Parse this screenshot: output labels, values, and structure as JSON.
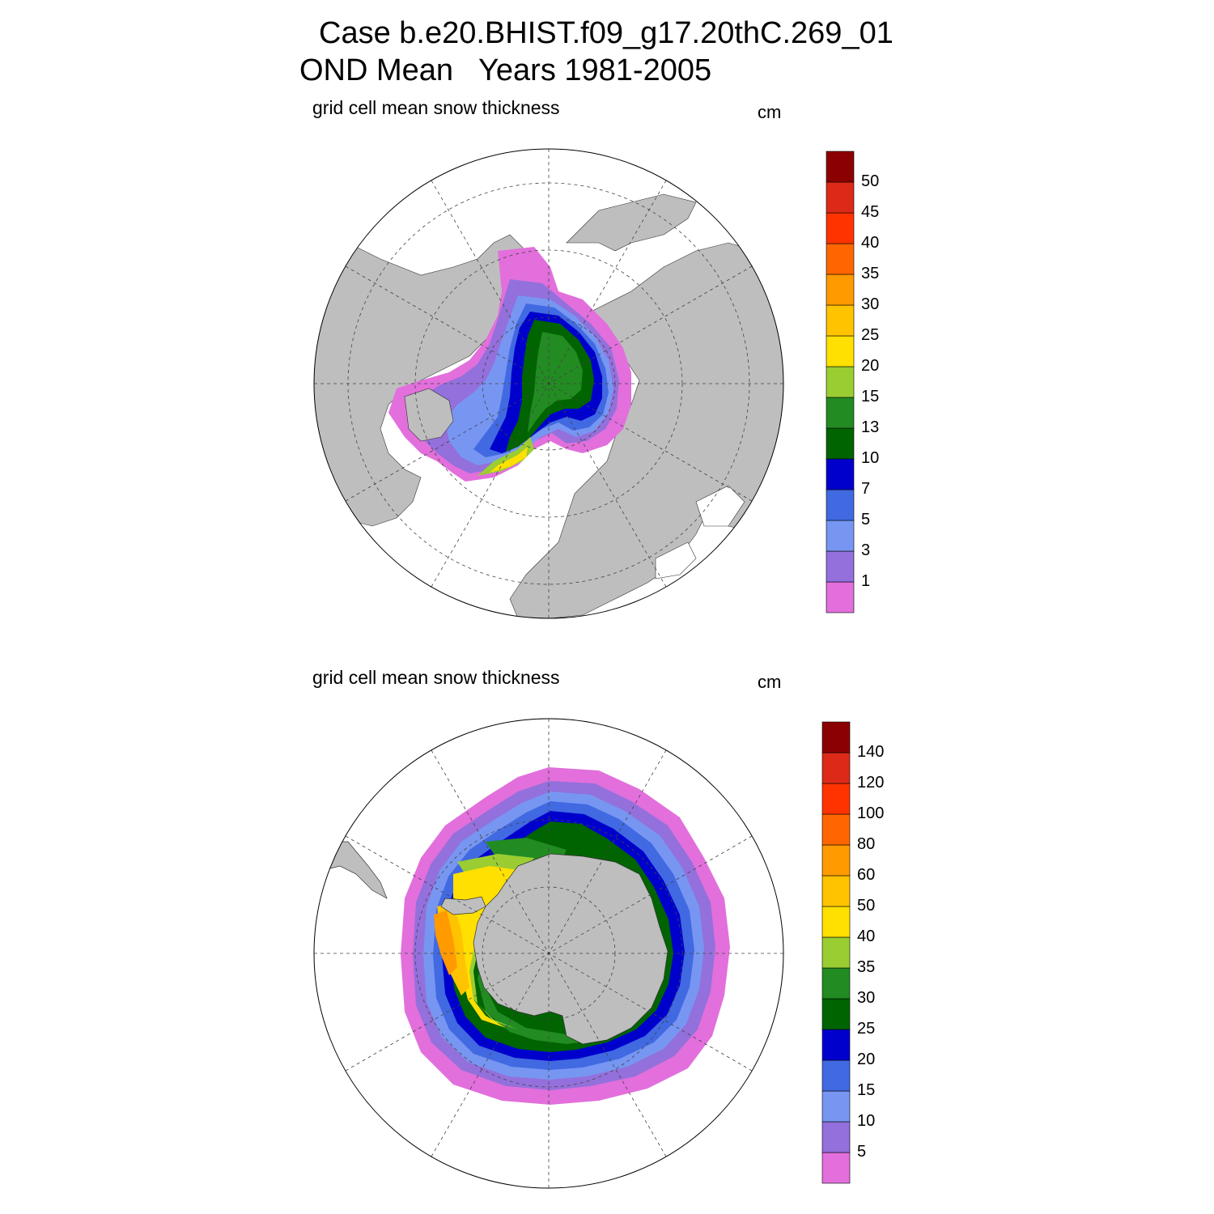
{
  "header": {
    "title": "Case b.e20.BHIST.f09_g17.20thC.269_01",
    "subtitle": "OND Mean   Years 1981-2005"
  },
  "colors": {
    "land": "#bebebe",
    "ocean": "#ffffff",
    "scale": [
      "#e26fdc",
      "#9370db",
      "#7796f2",
      "#4169e1",
      "#0000cd",
      "#006400",
      "#228b22",
      "#9acd32",
      "#ffe000",
      "#ffc300",
      "#ff9a00",
      "#ff6600",
      "#ff3300",
      "#dd2a18",
      "#8b0000"
    ]
  },
  "panels": [
    {
      "id": "north",
      "label": "grid cell mean snow thickness",
      "units": "cm",
      "colorbar_ticks": [
        "1",
        "3",
        "5",
        "7",
        "10",
        "13",
        "15",
        "20",
        "25",
        "30",
        "35",
        "40",
        "45",
        "50"
      ]
    },
    {
      "id": "south",
      "label": "grid cell mean snow thickness",
      "units": "cm",
      "colorbar_ticks": [
        "5",
        "10",
        "15",
        "20",
        "25",
        "30",
        "35",
        "40",
        "50",
        "60",
        "80",
        "100",
        "120",
        "140"
      ]
    }
  ]
}
